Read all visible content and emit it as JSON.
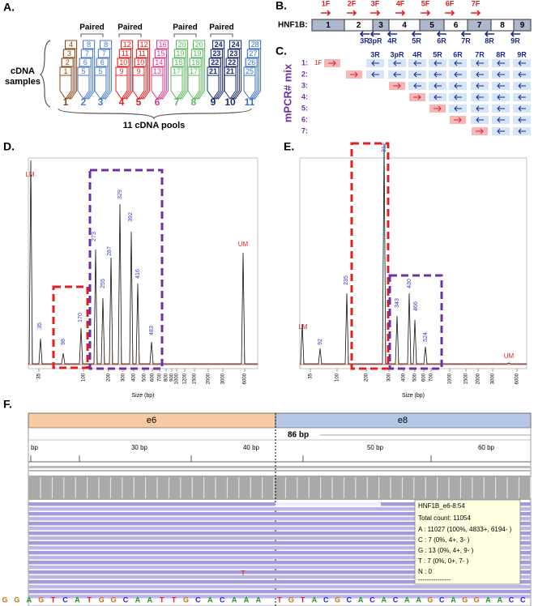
{
  "panel_a": {
    "label": "A.",
    "samples_label": "cDNA samples",
    "paired_labels": [
      "Paired",
      "Paired",
      "Paired",
      "Paired"
    ],
    "pools": [
      {
        "number": 1,
        "samples": [
          4,
          3,
          2,
          1
        ]
      },
      {
        "number": 2,
        "samples": [
          8,
          7,
          6,
          5
        ]
      },
      {
        "number": 3,
        "samples": [
          8,
          7,
          6,
          5
        ]
      },
      {
        "number": 4,
        "samples": [
          12,
          11,
          10,
          9
        ]
      },
      {
        "number": 5,
        "samples": [
          12,
          11,
          10,
          9
        ]
      },
      {
        "number": 6,
        "samples": [
          16,
          15,
          14,
          13
        ]
      },
      {
        "number": 7,
        "samples": [
          20,
          19,
          18,
          17
        ]
      },
      {
        "number": 8,
        "samples": [
          20,
          19,
          18,
          17
        ]
      },
      {
        "number": 9,
        "samples": [
          24,
          23,
          22,
          21
        ]
      },
      {
        "number": 10,
        "samples": [
          24,
          23,
          22,
          21
        ]
      },
      {
        "number": 11,
        "samples": [
          28,
          27,
          26,
          25
        ]
      }
    ],
    "footer": "11 cDNA pools"
  },
  "panel_b": {
    "label": "B.",
    "gene": "HNF1B:",
    "exons": [
      1,
      2,
      3,
      4,
      5,
      6,
      7,
      8,
      9
    ],
    "forward_primers": [
      "1F",
      "2F",
      "3F",
      "4F",
      "5F",
      "6F",
      "7F"
    ],
    "reverse_primers": [
      "3R",
      "3pR",
      "4R",
      "5R",
      "6R",
      "7R",
      "8R",
      "9R"
    ]
  },
  "panel_c": {
    "label": "C.",
    "axis_label": "mPCR# mix",
    "columns": [
      "3R",
      "3pR",
      "4R",
      "5R",
      "6R",
      "7R",
      "8R",
      "9R"
    ],
    "rows": [
      "1:",
      "2:",
      "3:",
      "4:",
      "5:",
      "6:",
      "7:"
    ],
    "first_row_primer": "1F"
  },
  "panel_d": {
    "label": "D.",
    "lower_marker": "LM",
    "upper_marker": "UM",
    "peaks": [
      35,
      98,
      170,
      273,
      255,
      287,
      329,
      392,
      416,
      483
    ],
    "x_label": "Size (bp)",
    "x_ticks": [
      35,
      100,
      200,
      300,
      400,
      500,
      600,
      700,
      800,
      900,
      1000,
      1200,
      1500,
      2000,
      3000,
      6000
    ]
  },
  "panel_e": {
    "label": "E.",
    "lower_marker": "LM",
    "upper_marker": "UM",
    "peaks": [
      92,
      235,
      312,
      343,
      430,
      466,
      524
    ],
    "x_label": "Size (bp)",
    "x_ticks": [
      35,
      100,
      200,
      300,
      400,
      500,
      600,
      700,
      1000,
      1500,
      2000,
      3000,
      6000
    ]
  },
  "panel_f": {
    "label": "F.",
    "exon_left": "e6",
    "exon_right": "e8",
    "span": "86 bp",
    "ruler": [
      "bp",
      "30 bp",
      "40 bp",
      "50 bp",
      "60 bp"
    ],
    "mismatch": "T",
    "tooltip": [
      "HNF1B_e6-8:54",
      "Total count: 11054",
      "A : 11027 (100%, 4833+, 6194- )",
      "C : 7 (0%, 4+, 3- )",
      "G : 13 (0%, 4+, 9- )",
      "T : 7 (0%, 0+, 7- )",
      "N : 0",
      "---------------"
    ],
    "sequence_left": [
      "G",
      "G",
      "A",
      "G",
      "T",
      "C",
      "A",
      "T",
      "G",
      "G",
      "C",
      "A",
      "A",
      "T",
      "T",
      "G",
      "C",
      "A",
      "C",
      "A",
      "A",
      "A"
    ],
    "sequence_right": [
      "T",
      "G",
      "T",
      "A",
      "C",
      "G",
      "C",
      "A",
      "C",
      "A",
      "C",
      "A",
      "A",
      "G",
      "C",
      "A",
      "G",
      "G",
      "A",
      "A",
      "C",
      "C"
    ]
  }
}
